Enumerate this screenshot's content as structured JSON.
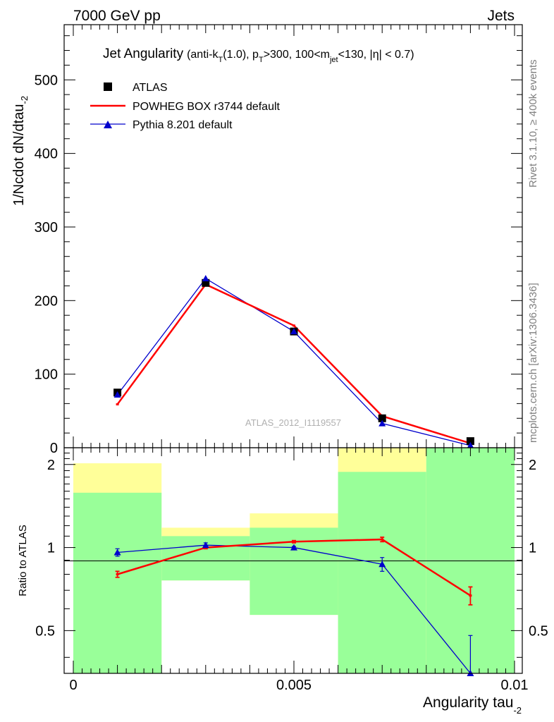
{
  "header": {
    "left": "7000 GeV pp",
    "right": "Jets"
  },
  "side_text": {
    "rivet": "Rivet 3.1.10, ≥ 400k events",
    "mcplots": "mcplots.cern.ch [arXiv:1306.3436]"
  },
  "watermark": "ATLAS_2012_I1119557",
  "colors": {
    "data": "#000000",
    "powheg": "#ff0000",
    "pythia": "#0000cc",
    "band_green": "#99ff99",
    "band_yellow": "#ffff99"
  },
  "chart_data": [
    {
      "type": "line",
      "title": "Jet Angularity",
      "title_detail": [
        "(anti-k",
        "T",
        "(1.0), p",
        "T",
        ">300, 100<m",
        "jet",
        "<130, |η| < 0.7)"
      ],
      "ylabel": [
        "1/Ncdot dN/dtau",
        "-2"
      ],
      "xlim": [
        0,
        0.01
      ],
      "ylim": [
        0,
        575
      ],
      "yticks": [
        0,
        100,
        200,
        300,
        400,
        500
      ],
      "ytick_labels": [
        "0",
        "100",
        "200",
        "300",
        "400",
        "500"
      ],
      "legend_position": "top-left",
      "series": [
        {
          "name": "ATLAS",
          "marker": "square",
          "x": [
            0.001,
            0.003,
            0.005,
            0.007,
            0.009
          ],
          "y": [
            75,
            224,
            158,
            40,
            9
          ]
        },
        {
          "name": "POWHEG BOX r3744 default",
          "marker": "none",
          "x": [
            0.001,
            0.003,
            0.005,
            0.007,
            0.009
          ],
          "y": [
            59,
            222,
            166,
            43,
            6
          ]
        },
        {
          "name": "Pythia 8.201 default",
          "marker": "triangle",
          "x": [
            0.001,
            0.003,
            0.005,
            0.007,
            0.009
          ],
          "y": [
            72,
            230,
            158,
            33,
            3
          ]
        }
      ]
    },
    {
      "type": "line",
      "ylabel": "Ratio to ATLAS",
      "xlabel": [
        "Angularity tau",
        "-2"
      ],
      "xlim": [
        0,
        0.01
      ],
      "ylim": [
        0.35,
        2.3
      ],
      "y_scale": "log",
      "xticks": [
        0,
        0.005,
        0.01
      ],
      "xtick_labels": [
        "0",
        "0.005",
        "0.01"
      ],
      "yticks": [
        0.5,
        1,
        2
      ],
      "ytick_labels": [
        "0.5",
        "1",
        "2"
      ],
      "bands": [
        {
          "x0": 0.0,
          "x1": 0.002,
          "green": [
            0.35,
            1.58
          ],
          "yellow": [
            0.35,
            2.02
          ]
        },
        {
          "x0": 0.002,
          "x1": 0.004,
          "green": [
            0.76,
            1.1
          ],
          "yellow": [
            0.76,
            1.18
          ]
        },
        {
          "x0": 0.004,
          "x1": 0.006,
          "green": [
            0.57,
            1.18
          ],
          "yellow": [
            0.57,
            1.33
          ]
        },
        {
          "x0": 0.006,
          "x1": 0.008,
          "green": [
            0.35,
            1.88
          ],
          "yellow": [
            0.35,
            2.3
          ]
        },
        {
          "x0": 0.008,
          "x1": 0.01,
          "green": [
            0.35,
            2.3
          ],
          "yellow": [
            0.35,
            2.3
          ]
        }
      ],
      "series": [
        {
          "name": "POWHEG BOX r3744 default",
          "x": [
            0.001,
            0.003,
            0.005,
            0.007,
            0.009
          ],
          "y": [
            0.8,
            1.0,
            1.05,
            1.07,
            0.67
          ],
          "yerr": [
            0.02,
            0.01,
            0.01,
            0.02,
            0.05
          ]
        },
        {
          "name": "Pythia 8.201 default",
          "x": [
            0.001,
            0.003,
            0.005,
            0.007,
            0.009
          ],
          "y": [
            0.96,
            1.02,
            1.0,
            0.87,
            0.35
          ],
          "yerr": [
            0.03,
            0.02,
            0.01,
            0.05,
            0.13
          ]
        }
      ]
    }
  ]
}
